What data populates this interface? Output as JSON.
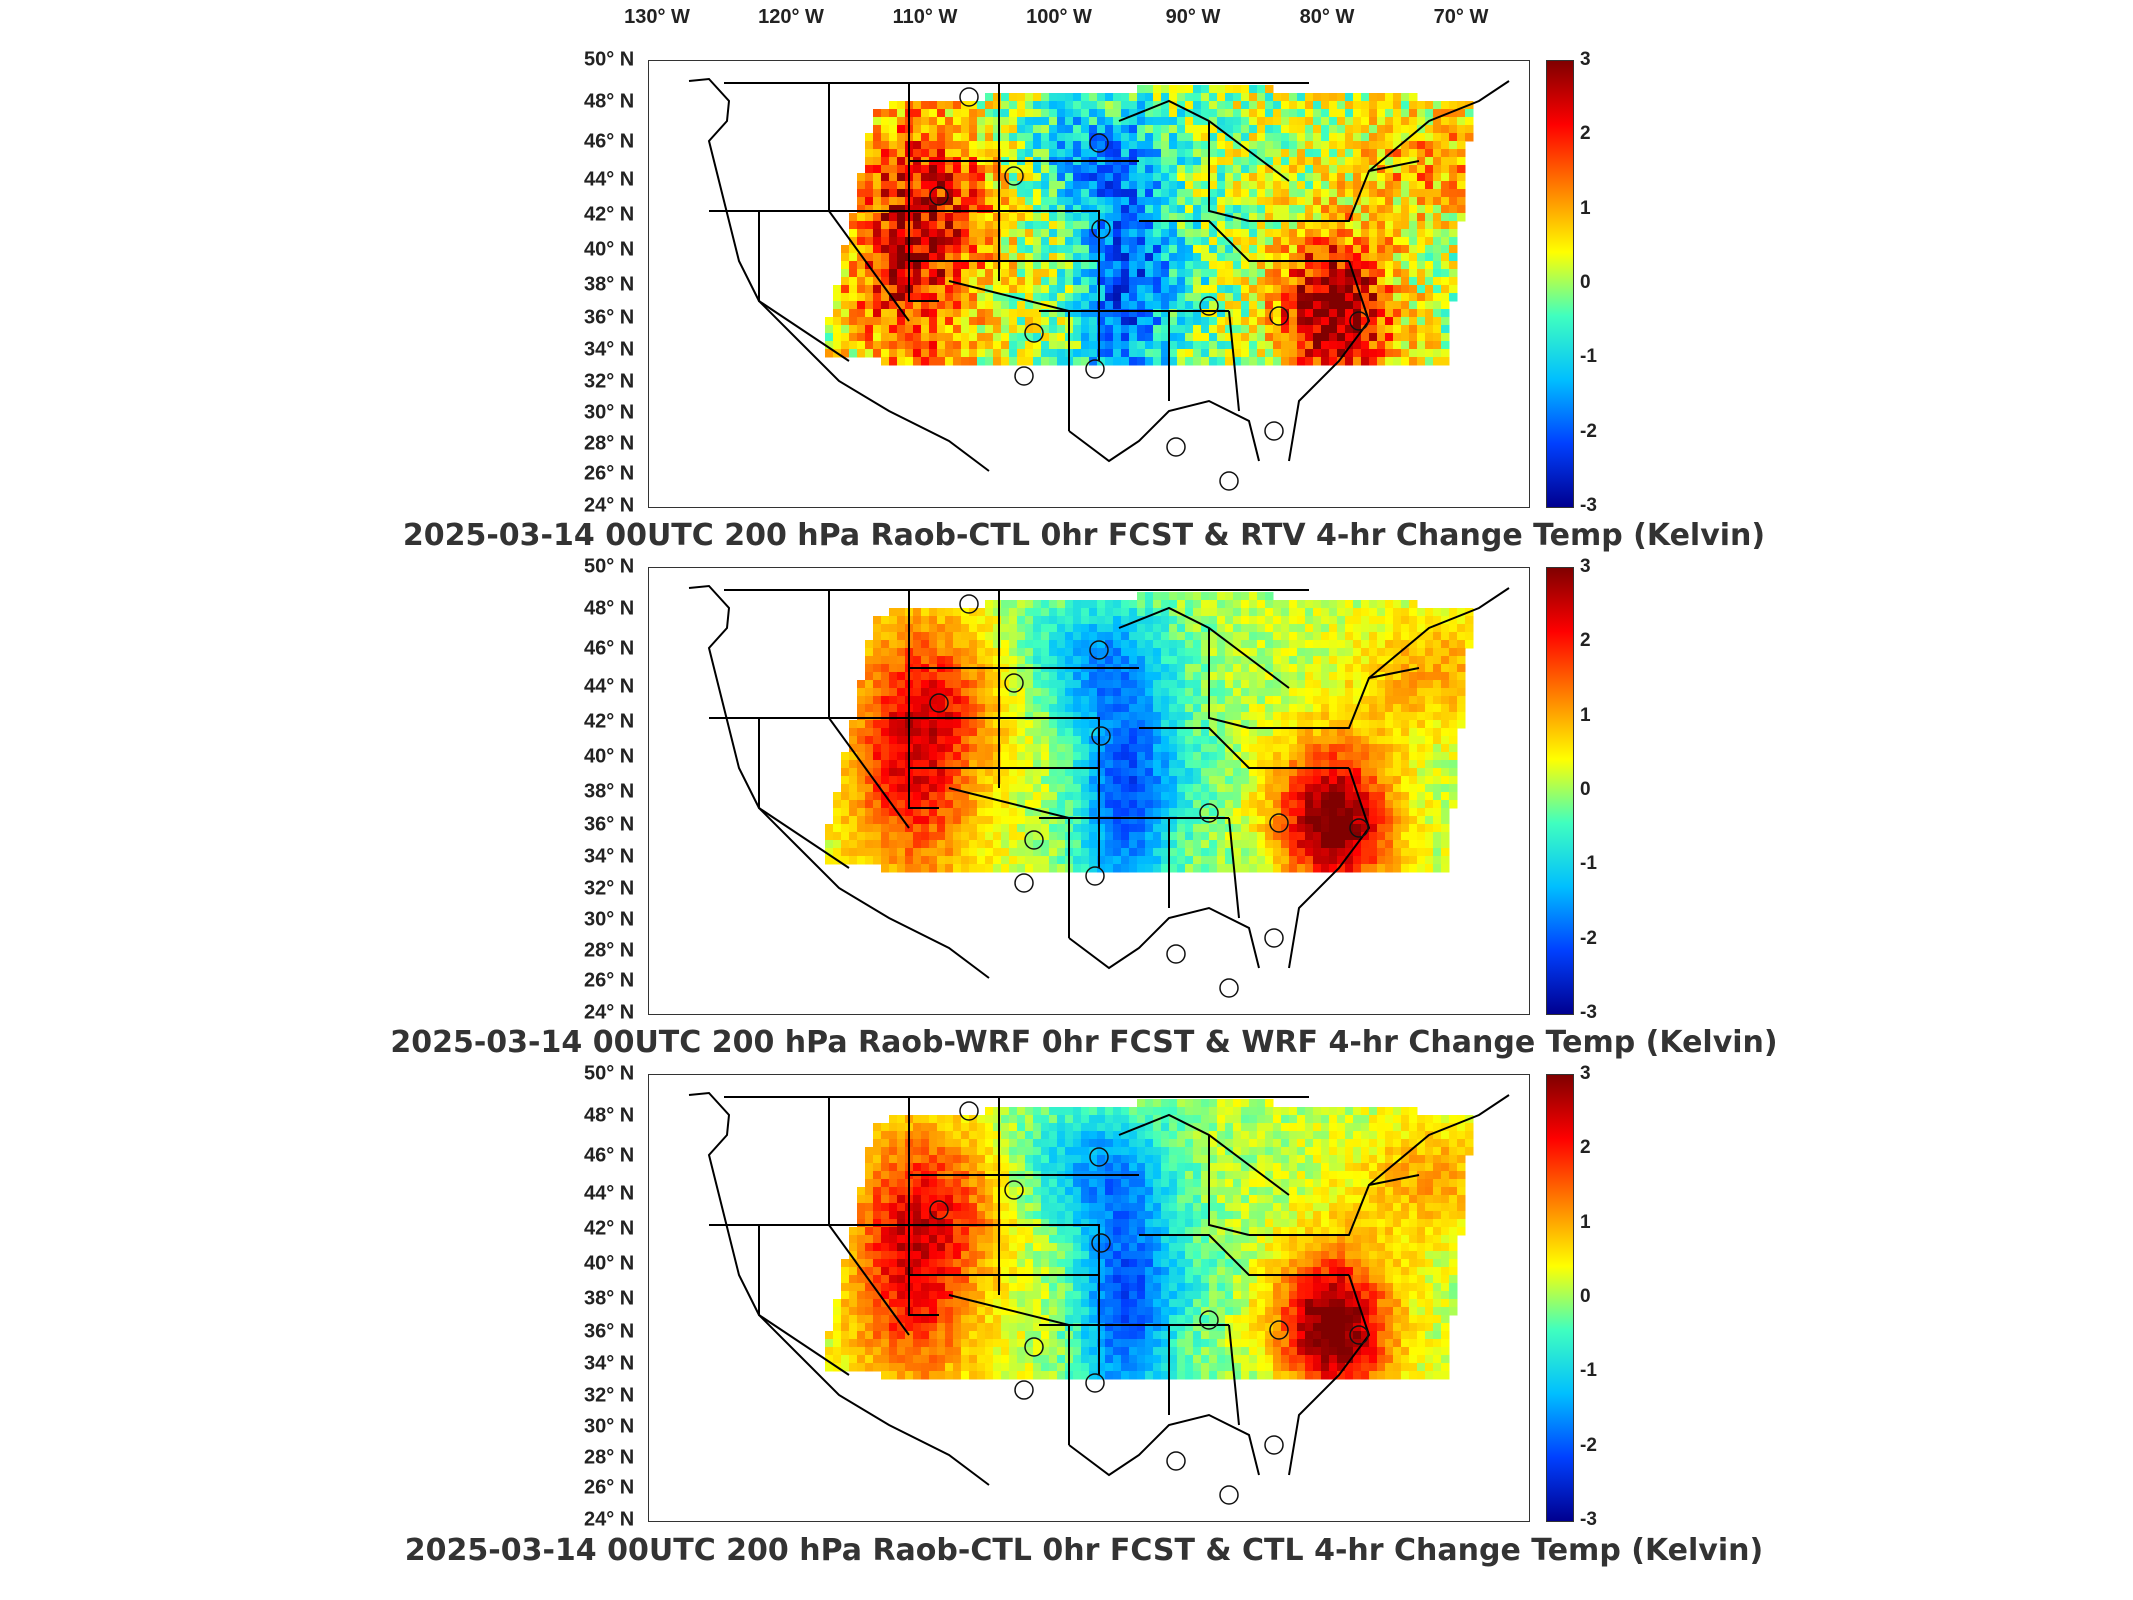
{
  "longitude_labels": [
    "130° W",
    "120° W",
    "110° W",
    "100° W",
    "90° W",
    "80° W",
    "70° W"
  ],
  "latitude_labels": [
    "50° N",
    "48° N",
    "46° N",
    "44° N",
    "42° N",
    "40° N",
    "38° N",
    "36° N",
    "34° N",
    "32° N",
    "30° N",
    "28° N",
    "26° N",
    "24° N"
  ],
  "colorbar": {
    "ticks": [
      "3",
      "2",
      "1",
      "0",
      "-1",
      "-2",
      "-3"
    ],
    "colors": [
      "#00008f",
      "#0040ff",
      "#00bfff",
      "#40ffbf",
      "#ffff00",
      "#ff8000",
      "#ff0000",
      "#800000"
    ]
  },
  "panels": [
    {
      "title": "2025-03-14 00UTC 200 hPa Raob-CTL 0hr FCST & RTV 4-hr Change Temp (Kelvin)"
    },
    {
      "title": "2025-03-14 00UTC 200 hPa Raob-WRF 0hr FCST & WRF 4-hr Change Temp (Kelvin)"
    },
    {
      "title": "2025-03-14 00UTC 200 hPa Raob-CTL 0hr FCST & CTL 4-hr Change Temp (Kelvin)"
    }
  ]
}
